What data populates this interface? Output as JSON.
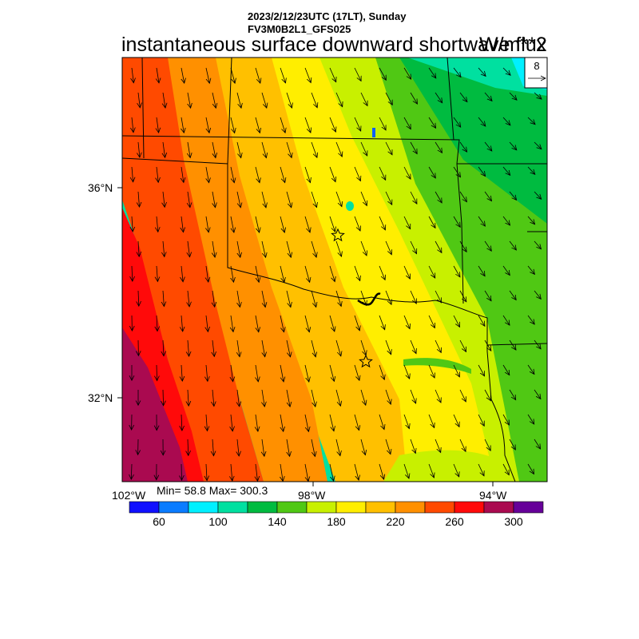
{
  "header": {
    "line1": "2023/2/12/23UTC (17LT), Sunday",
    "line2": "FV3M0B2L1_GFS025"
  },
  "title": "instantaneous surface downward shortwave flux",
  "units": "W/m**2",
  "reference_vector": {
    "label": "8"
  },
  "axes": {
    "lat_labels": [
      "36°N",
      "32°N"
    ],
    "lon_labels": [
      "102°W",
      "98°W",
      "94°W"
    ]
  },
  "stats": {
    "text": "Min= 58.8 Max= 300.3",
    "min": 58.8,
    "max": 300.3
  },
  "colorbar": {
    "colors": [
      "#1010ff",
      "#0a7cff",
      "#00f0ff",
      "#00e0a0",
      "#00bb40",
      "#50c814",
      "#c8f000",
      "#ffee00",
      "#ffc000",
      "#ff9000",
      "#ff4a00",
      "#ff0a0a",
      "#aa0a50",
      "#660099"
    ],
    "tick_labels": [
      "60",
      "100",
      "140",
      "180",
      "220",
      "260",
      "300"
    ]
  },
  "markers": [
    "star",
    "star"
  ]
}
